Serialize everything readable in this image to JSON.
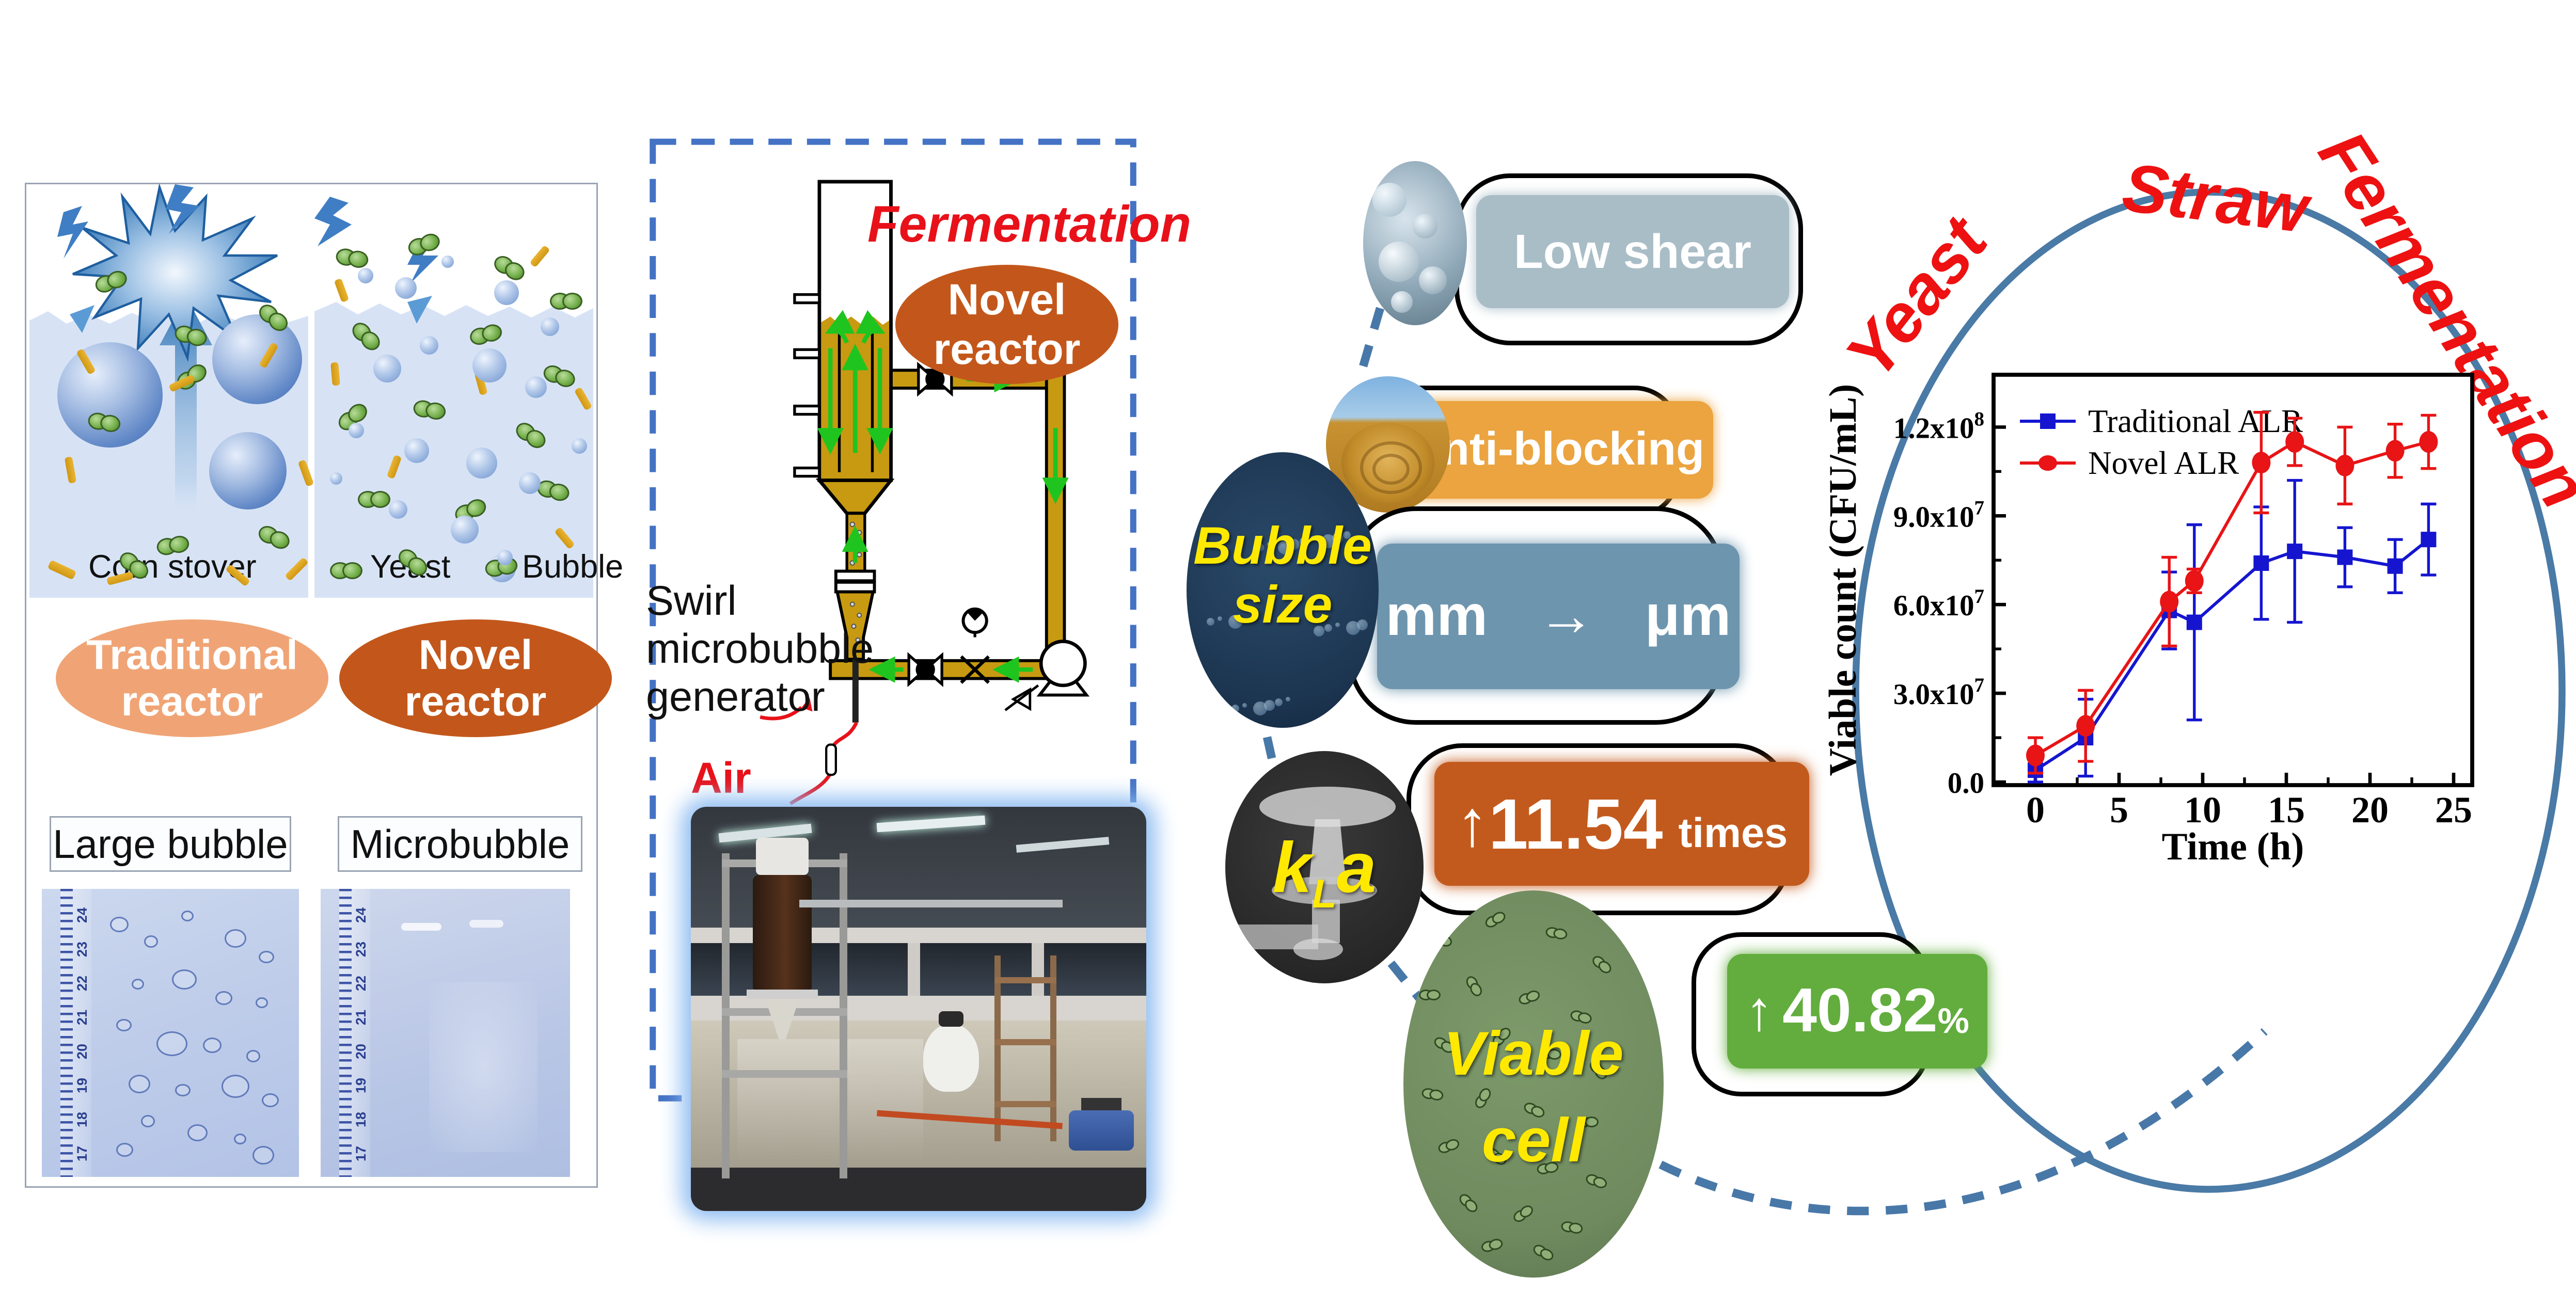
{
  "left_panel": {
    "legend": {
      "corn_stover": "Corn stover",
      "yeast": "Yeast",
      "bubble": "Bubble"
    },
    "reactor_labels": [
      {
        "line1": "Traditional",
        "line2": "reactor",
        "color": "#f0a475"
      },
      {
        "line1": "Novel",
        "line2": "reactor",
        "color": "#c3571b"
      }
    ],
    "bubble_type_labels": [
      "Large bubble",
      "Microbubble"
    ],
    "ruler_numbers": [
      "24",
      "23",
      "22",
      "21",
      "20",
      "19",
      "18",
      "17"
    ]
  },
  "middle_panel": {
    "title": "Fermentation",
    "title_color": "#e8111a",
    "reactor_ellipse": {
      "line1": "Novel",
      "line2": "reactor",
      "color": "#c3571b"
    },
    "generator_label": {
      "line1": "Swirl",
      "line2": "microbubble",
      "line3": "generator"
    },
    "air_label": "Air",
    "liquid_color": "#c79a11",
    "border_color": "#4472c4"
  },
  "badges": {
    "low_shear": {
      "label": "Low shear",
      "fill": "#a9bdc7"
    },
    "anti_blocking": {
      "label": "Anti-blocking",
      "fill": "#eba440"
    },
    "bubble_size": {
      "circle_line1": "Bubble",
      "circle_line2": "size",
      "badge_label": "mm → μm",
      "fill": "#6e95ae"
    },
    "kla": {
      "k": "k",
      "sub": "L",
      "a": "a",
      "arrow": "↑",
      "value": "11.54",
      "unit": "times",
      "fill": "#c35a1d"
    },
    "viable_cell": {
      "circle_line1": "Viable",
      "circle_line2": "cell",
      "arrow": "↑",
      "value": "40.82",
      "unit": "%",
      "fill": "#62ad3d"
    },
    "circle_text_color": "#ffe900"
  },
  "right_section": {
    "curved_labels": [
      {
        "text": "Yeast"
      },
      {
        "text": "Straw"
      },
      {
        "text": "Fermentation"
      }
    ],
    "curved_label_color": "#ee1111",
    "circle_stroke": "#4a7aa6"
  },
  "chart_data": {
    "type": "line",
    "title": "",
    "xlabel": "Time (h)",
    "ylabel": "Viable count (CFU/mL)",
    "xlim": [
      -2.6,
      27
    ],
    "ylim": [
      0,
      138000000.0
    ],
    "xticks": [
      0,
      5,
      10,
      15,
      20,
      25
    ],
    "yticks": [
      {
        "v": 0,
        "label": "0.0",
        "sup": null
      },
      {
        "v": 30000000.0,
        "label": "3.0x10",
        "sup": "7"
      },
      {
        "v": 60000000.0,
        "label": "6.0x10",
        "sup": "7"
      },
      {
        "v": 90000000.0,
        "label": "9.0x10",
        "sup": "7"
      },
      {
        "v": 120000000.0,
        "label": "1.2x10",
        "sup": "8"
      }
    ],
    "x": [
      0,
      3,
      8,
      9.5,
      13.5,
      15.5,
      18.5,
      21.5,
      23.5
    ],
    "series": [
      {
        "name": "Traditional ALR",
        "color": "#1515d0",
        "marker": "square",
        "values": [
          4000000.0,
          15000000.0,
          58000000.0,
          54000000.0,
          74000000.0,
          78000000.0,
          76000000.0,
          73000000.0,
          82000000.0
        ],
        "errors": [
          4000000.0,
          13000000.0,
          13000000.0,
          33000000.0,
          19000000.0,
          24000000.0,
          10000000.0,
          9000000.0,
          12000000.0
        ]
      },
      {
        "name": "Novel ALR",
        "color": "#e81416",
        "marker": "circle",
        "values": [
          9000000.0,
          19000000.0,
          61000000.0,
          68000000.0,
          108000000.0,
          115000000.0,
          107000000.0,
          112000000.0,
          115000000.0
        ],
        "errors": [
          6000000.0,
          12000000.0,
          15000000.0,
          4000000.0,
          17000000.0,
          8000000.0,
          13000000.0,
          9000000.0,
          9000000.0
        ]
      }
    ],
    "legend_position": "top-left",
    "grid": false
  }
}
